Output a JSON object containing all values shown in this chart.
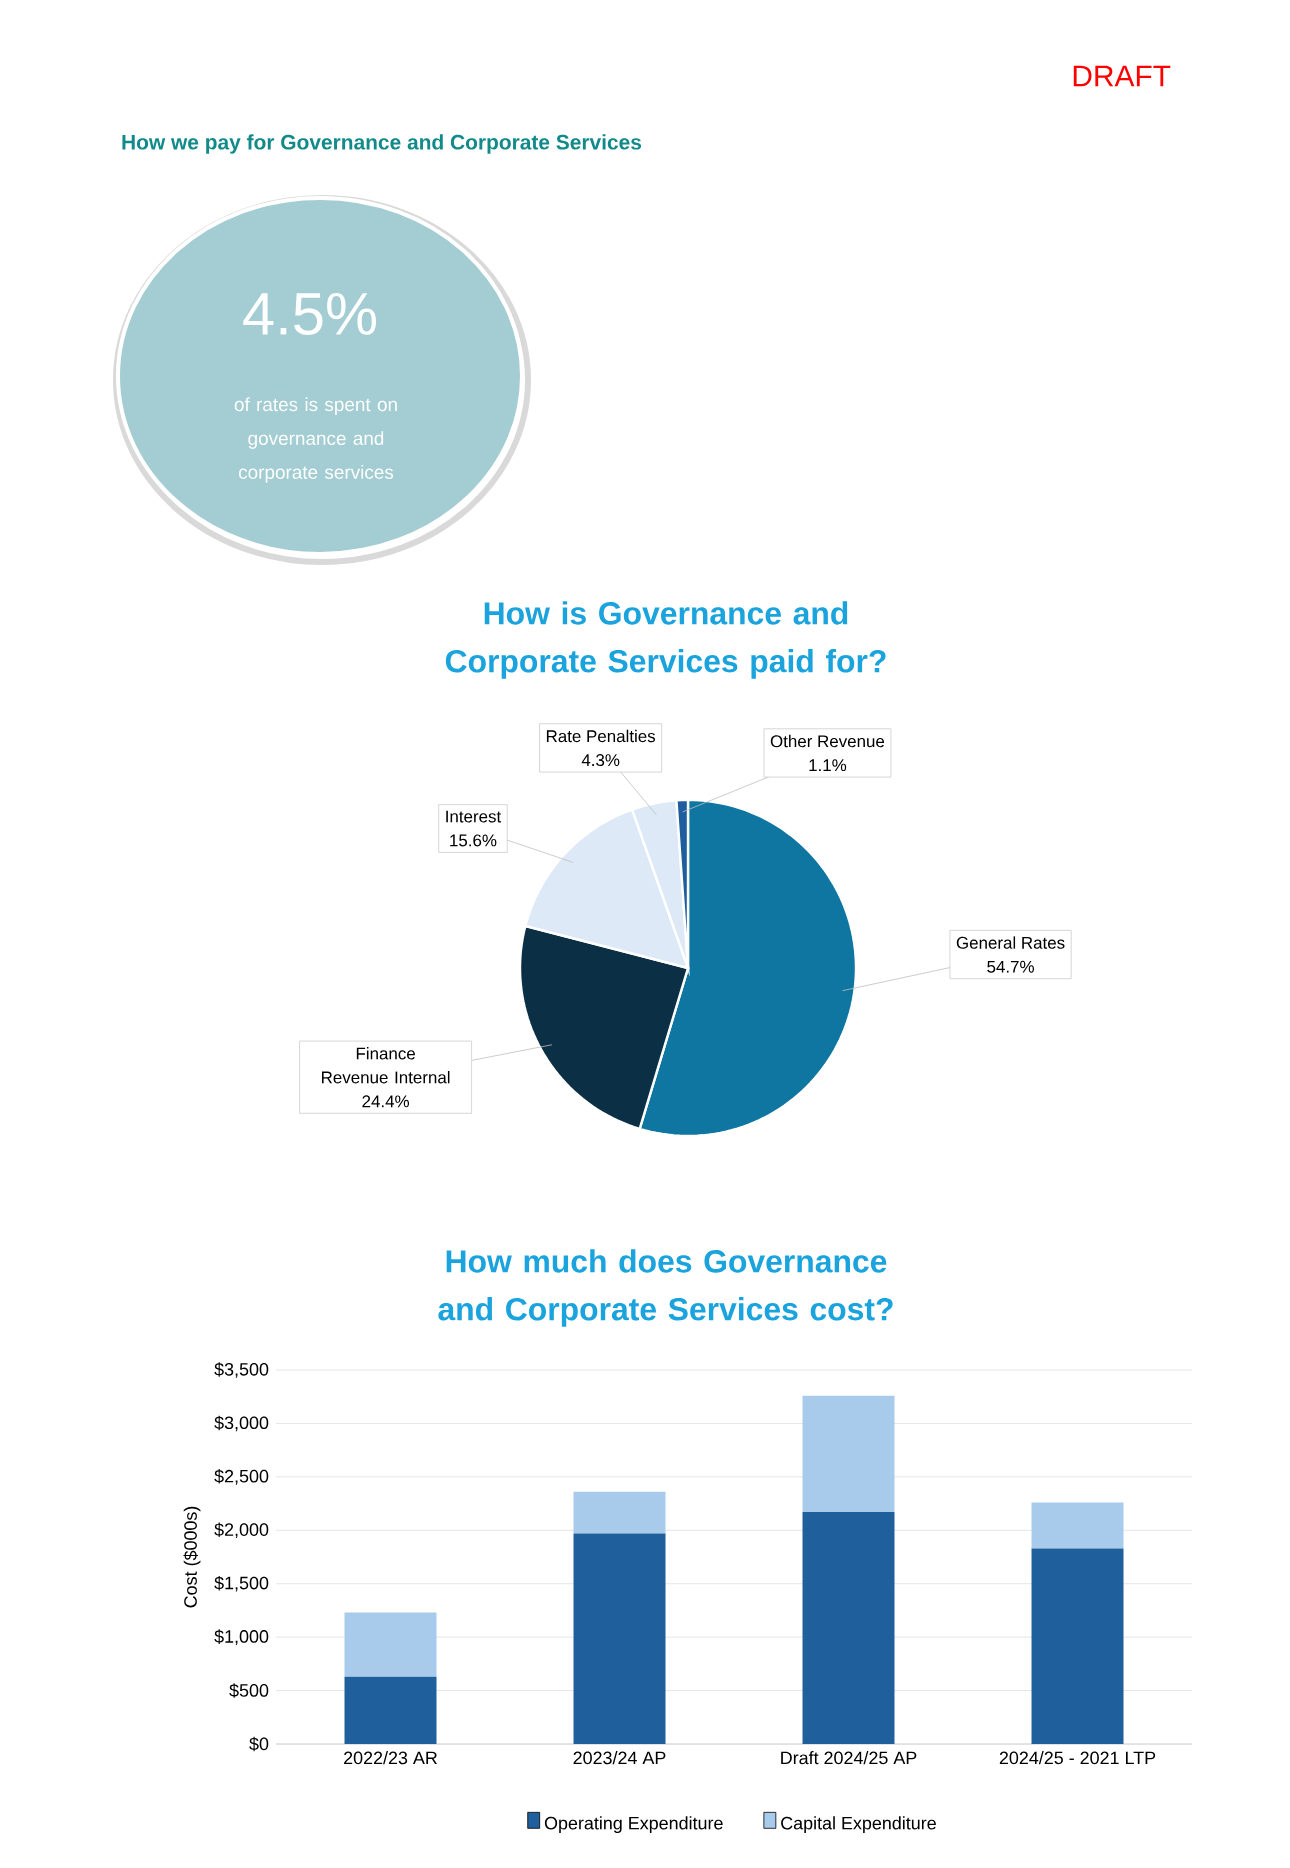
{
  "chart_data": [
    {
      "type": "other",
      "title": "How we pay for Governance and Corporate Services",
      "annotations": [
        "DRAFT",
        "4.5%",
        "of rates is spent on governance and corporate services"
      ]
    },
    {
      "type": "pie",
      "title": "How is Governance and Corporate Services paid for?",
      "categories": [
        "General Rates",
        "Finance Revenue Internal",
        "Interest",
        "Rate Penalties",
        "Other Revenue"
      ],
      "values": [
        54.7,
        24.4,
        15.6,
        4.3,
        1.1
      ],
      "value_labels": [
        "54.7%",
        "24.4%",
        "15.6%",
        "4.3%",
        "1.1%"
      ],
      "colors": [
        "#0e76a0",
        "#0b2f45",
        "#dde9f6",
        "#dde9f6",
        "#1f5e9e"
      ]
    },
    {
      "type": "bar",
      "title": "How much does Governance and Corporate Services cost?",
      "ylabel": "Cost ($000s)",
      "categories": [
        "2022/23 AR",
        "2023/24 AP",
        "Draft 2024/25 AP",
        "2024/25 - 2021 LTP"
      ],
      "stacked": true,
      "series": [
        {
          "name": "Operating Expenditure",
          "color": "#1f5f9b",
          "values": [
            630,
            1970,
            2170,
            1830
          ]
        },
        {
          "name": "Capital Expenditure",
          "color": "#a8cbec",
          "values": [
            600,
            390,
            1090,
            430
          ]
        }
      ],
      "ylim": [
        0,
        3500
      ],
      "yticks": [
        {
          "value": 0,
          "label": "$0"
        },
        {
          "value": 500,
          "label": "$500"
        },
        {
          "value": 1000,
          "label": "$1,000"
        },
        {
          "value": 1500,
          "label": "$1,500"
        },
        {
          "value": 2000,
          "label": "$2,000"
        },
        {
          "value": 2500,
          "label": "$2,500"
        },
        {
          "value": 3000,
          "label": "$3,000"
        },
        {
          "value": 3500,
          "label": "$3,500"
        }
      ],
      "grid": "y",
      "legend": "bottom"
    }
  ]
}
